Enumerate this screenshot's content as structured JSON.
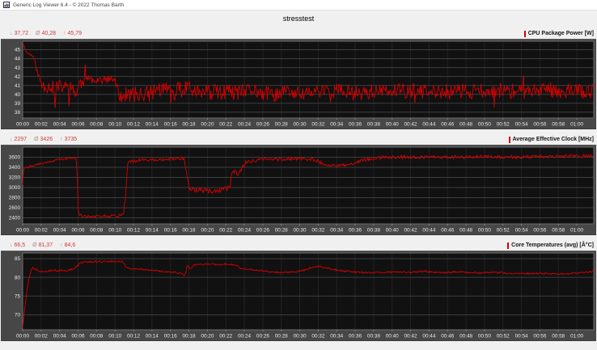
{
  "window": {
    "title": "Generic Log Viewer 6.4 - © 2022 Thomas Barth"
  },
  "page_title": "stresstest",
  "stats_symbols": {
    "min": "↓",
    "avg": "Ø",
    "max": "↑"
  },
  "colors": {
    "accent": "#d40000",
    "stat_value": "#cf3a3a",
    "stat_symbol": "#a98f8f",
    "panel_bg": "#474747",
    "plot_bg": "#111111",
    "grid_h": "#3f3f3f",
    "grid_v": "#222222",
    "frame": "#6e6e6e",
    "tick": "#8a8a8a",
    "axis_text": "#e8e8e8"
  },
  "charts": [
    {
      "min": "37,72",
      "avg": "40,28",
      "max": "45,79",
      "legend": "CPU Package Power [W]"
    },
    {
      "min": "2297",
      "avg": "3426",
      "max": "3735",
      "legend": "Average Effective Clock [MHz]"
    },
    {
      "min": "66,5",
      "avg": "81,37",
      "max": "84,6",
      "legend": "Core Temperatures (avg) [Â°C]"
    }
  ],
  "chart_data": [
    {
      "type": "line",
      "title": "CPU Package Power [W]",
      "ylabel": "W",
      "stats": {
        "min": 37.72,
        "avg": 40.28,
        "max": 45.79
      },
      "ylim": [
        37.35,
        45.95
      ],
      "xlim": [
        0,
        3710
      ],
      "grid": true,
      "legend_position": "top-right",
      "y_ticks": [
        38,
        39,
        40,
        41,
        42,
        43,
        44,
        45
      ],
      "x_tick_t": [
        0,
        120,
        240,
        360,
        480,
        600,
        720,
        840,
        960,
        1080,
        1200,
        1320,
        1440,
        1560,
        1680,
        1800,
        1920,
        2040,
        2160,
        2280,
        2400,
        2520,
        2640,
        2760,
        2880,
        3000,
        3120,
        3240,
        3360,
        3480,
        3600
      ],
      "x_tick_labels": [
        "00:00",
        "00:02",
        "00:04",
        "00:06",
        "00:08",
        "00:10",
        "00:12",
        "00:14",
        "00:16",
        "00:18",
        "00:20",
        "00:22",
        "00:24",
        "00:26",
        "00:28",
        "00:30",
        "00:32",
        "00:34",
        "00:36",
        "00:38",
        "00:40",
        "00:42",
        "00:44",
        "00:46",
        "00:48",
        "00:50",
        "00:52",
        "00:54",
        "00:56",
        "00:58",
        "01:00"
      ],
      "series_color": "#d40000",
      "seed": 11,
      "samples": 740,
      "spike_p": 0.012,
      "spike_mult": 2.2,
      "clamp": [
        37.72,
        45.79
      ],
      "keyframes": [
        [
          0,
          45.8
        ],
        [
          25,
          44.7
        ],
        [
          55,
          44.4
        ],
        [
          70,
          44.2
        ],
        [
          85,
          43.3
        ],
        [
          100,
          42.2
        ],
        [
          115,
          41.5
        ],
        [
          130,
          41.0
        ],
        [
          200,
          40.8
        ],
        [
          210,
          38.6
        ],
        [
          220,
          40.9
        ],
        [
          330,
          40.7
        ],
        [
          350,
          39.9
        ],
        [
          365,
          41.1
        ],
        [
          395,
          41.5
        ],
        [
          405,
          43.0
        ],
        [
          415,
          41.6
        ],
        [
          430,
          41.7
        ],
        [
          600,
          41.6
        ],
        [
          620,
          40.2
        ],
        [
          640,
          39.9
        ],
        [
          840,
          40.1
        ],
        [
          860,
          40.6
        ],
        [
          980,
          40.4
        ],
        [
          990,
          38.8
        ],
        [
          1000,
          40.5
        ],
        [
          1060,
          40.6
        ],
        [
          1080,
          41.8
        ],
        [
          1095,
          40.9
        ],
        [
          1110,
          40.3
        ],
        [
          1300,
          40.2
        ],
        [
          1440,
          40.2
        ],
        [
          1500,
          40.5
        ],
        [
          1620,
          39.9
        ],
        [
          1740,
          40.4
        ],
        [
          1800,
          40.0
        ],
        [
          1920,
          40.3
        ],
        [
          2040,
          40.4
        ],
        [
          2160,
          40.2
        ],
        [
          2280,
          40.3
        ],
        [
          2400,
          40.3
        ],
        [
          2520,
          40.4
        ],
        [
          2640,
          40.2
        ],
        [
          2760,
          40.3
        ],
        [
          2880,
          40.4
        ],
        [
          3000,
          40.3
        ],
        [
          3120,
          40.5
        ],
        [
          3240,
          40.2
        ],
        [
          3360,
          40.6
        ],
        [
          3480,
          40.4
        ],
        [
          3600,
          40.4
        ],
        [
          3710,
          40.3
        ]
      ],
      "noise": [
        [
          0,
          0.06
        ],
        [
          60,
          0.12
        ],
        [
          95,
          0.3
        ],
        [
          120,
          0.75
        ],
        [
          395,
          0.75
        ],
        [
          410,
          0.45
        ],
        [
          600,
          0.45
        ],
        [
          625,
          0.9
        ],
        [
          3710,
          0.85
        ]
      ]
    },
    {
      "type": "line",
      "title": "Average Effective Clock [MHz]",
      "ylabel": "MHz",
      "stats": {
        "min": 2297,
        "avg": 3426,
        "max": 3735
      },
      "ylim": [
        2280,
        3800
      ],
      "xlim": [
        0,
        3710
      ],
      "grid": true,
      "legend_position": "top-right",
      "y_ticks": [
        2400,
        2600,
        2800,
        3000,
        3200,
        3400,
        3600
      ],
      "x_tick_t": [
        0,
        120,
        240,
        360,
        480,
        600,
        720,
        840,
        960,
        1080,
        1200,
        1320,
        1440,
        1560,
        1680,
        1800,
        1920,
        2040,
        2160,
        2280,
        2400,
        2520,
        2640,
        2760,
        2880,
        3000,
        3120,
        3240,
        3360,
        3480,
        3600
      ],
      "x_tick_labels": [
        "00:00",
        "00:02",
        "00:04",
        "00:06",
        "00:08",
        "00:10",
        "00:12",
        "00:14",
        "00:16",
        "00:18",
        "00:20",
        "00:22",
        "00:24",
        "00:26",
        "00:28",
        "00:30",
        "00:32",
        "00:34",
        "00:36",
        "00:38",
        "00:40",
        "00:42",
        "00:44",
        "00:46",
        "00:48",
        "00:50",
        "00:52",
        "00:54",
        "00:56",
        "00:58",
        "01:00"
      ],
      "series_color": "#d40000",
      "seed": 22,
      "samples": 740,
      "spike_p": 0.01,
      "spike_mult": 2.0,
      "clamp": [
        2297,
        3735
      ],
      "keyframes": [
        [
          0,
          3060
        ],
        [
          6,
          3380
        ],
        [
          60,
          3430
        ],
        [
          120,
          3470
        ],
        [
          180,
          3520
        ],
        [
          240,
          3555
        ],
        [
          300,
          3580
        ],
        [
          348,
          3590
        ],
        [
          356,
          3100
        ],
        [
          362,
          2470
        ],
        [
          380,
          2440
        ],
        [
          520,
          2430
        ],
        [
          640,
          2445
        ],
        [
          655,
          2470
        ],
        [
          662,
          2700
        ],
        [
          668,
          2760
        ],
        [
          674,
          3100
        ],
        [
          682,
          3470
        ],
        [
          700,
          3510
        ],
        [
          760,
          3545
        ],
        [
          900,
          3560
        ],
        [
          1020,
          3575
        ],
        [
          1050,
          3560
        ],
        [
          1064,
          3300
        ],
        [
          1080,
          3000
        ],
        [
          1094,
          2940
        ],
        [
          1150,
          2950
        ],
        [
          1220,
          2930
        ],
        [
          1300,
          2960
        ],
        [
          1345,
          2980
        ],
        [
          1360,
          3280
        ],
        [
          1380,
          3310
        ],
        [
          1395,
          3260
        ],
        [
          1410,
          3310
        ],
        [
          1430,
          3420
        ],
        [
          1450,
          3500
        ],
        [
          1500,
          3530
        ],
        [
          1560,
          3550
        ],
        [
          1680,
          3560
        ],
        [
          1800,
          3570
        ],
        [
          1880,
          3560
        ],
        [
          1920,
          3520
        ],
        [
          1950,
          3470
        ],
        [
          1980,
          3450
        ],
        [
          2060,
          3440
        ],
        [
          2120,
          3460
        ],
        [
          2160,
          3480
        ],
        [
          2200,
          3540
        ],
        [
          2260,
          3570
        ],
        [
          2320,
          3590
        ],
        [
          2400,
          3600
        ],
        [
          2600,
          3605
        ],
        [
          2800,
          3600
        ],
        [
          3000,
          3610
        ],
        [
          3200,
          3605
        ],
        [
          3400,
          3615
        ],
        [
          3600,
          3620
        ],
        [
          3710,
          3630
        ]
      ],
      "noise": [
        [
          0,
          8
        ],
        [
          20,
          22
        ],
        [
          340,
          22
        ],
        [
          365,
          28
        ],
        [
          650,
          28
        ],
        [
          690,
          25
        ],
        [
          710,
          32
        ],
        [
          1050,
          32
        ],
        [
          1085,
          55
        ],
        [
          1340,
          55
        ],
        [
          1375,
          38
        ],
        [
          1460,
          33
        ],
        [
          3710,
          32
        ]
      ]
    },
    {
      "type": "line",
      "title": "Core Temperatures (avg) [Â°C]",
      "ylabel": "°C",
      "stats": {
        "min": 66.5,
        "avg": 81.37,
        "max": 84.6
      },
      "ylim": [
        66.0,
        86.5
      ],
      "xlim": [
        0,
        3710
      ],
      "grid": true,
      "legend_position": "top-right",
      "y_ticks": [
        70,
        75,
        80,
        85
      ],
      "x_tick_t": [
        0,
        120,
        240,
        360,
        480,
        600,
        720,
        840,
        960,
        1080,
        1200,
        1320,
        1440,
        1560,
        1680,
        1800,
        1920,
        2040,
        2160,
        2280,
        2400,
        2520,
        2640,
        2760,
        2880,
        3000,
        3120,
        3240,
        3360,
        3480,
        3600
      ],
      "x_tick_labels": [
        "00:00",
        "00:02",
        "00:04",
        "00:06",
        "00:08",
        "00:10",
        "00:12",
        "00:14",
        "00:16",
        "00:18",
        "00:20",
        "00:22",
        "00:24",
        "00:26",
        "00:28",
        "00:30",
        "00:32",
        "00:34",
        "00:36",
        "00:38",
        "00:40",
        "00:42",
        "00:44",
        "00:46",
        "00:48",
        "00:50",
        "00:52",
        "00:54",
        "00:56",
        "00:58",
        "01:00"
      ],
      "series_color": "#d40000",
      "seed": 33,
      "samples": 740,
      "spike_p": 0.008,
      "spike_mult": 1.8,
      "clamp": [
        66.5,
        84.6
      ],
      "keyframes": [
        [
          0,
          66.5
        ],
        [
          10,
          70.5
        ],
        [
          25,
          75.5
        ],
        [
          40,
          79.5
        ],
        [
          55,
          81.8
        ],
        [
          65,
          82.6
        ],
        [
          80,
          82.2
        ],
        [
          100,
          81.8
        ],
        [
          130,
          81.6
        ],
        [
          170,
          81.7
        ],
        [
          200,
          82.0
        ],
        [
          230,
          81.7
        ],
        [
          260,
          81.9
        ],
        [
          290,
          81.6
        ],
        [
          320,
          82.2
        ],
        [
          340,
          82.6
        ],
        [
          355,
          83.0
        ],
        [
          375,
          83.8
        ],
        [
          400,
          84.1
        ],
        [
          500,
          84.2
        ],
        [
          600,
          84.3
        ],
        [
          650,
          84.3
        ],
        [
          665,
          83.2
        ],
        [
          680,
          82.6
        ],
        [
          700,
          82.4
        ],
        [
          760,
          82.2
        ],
        [
          820,
          81.9
        ],
        [
          880,
          81.7
        ],
        [
          940,
          81.4
        ],
        [
          1000,
          81.3
        ],
        [
          1030,
          81.0
        ],
        [
          1048,
          80.6
        ],
        [
          1060,
          81.0
        ],
        [
          1068,
          83.0
        ],
        [
          1080,
          82.8
        ],
        [
          1090,
          82.2
        ],
        [
          1100,
          82.4
        ],
        [
          1112,
          83.2
        ],
        [
          1130,
          83.4
        ],
        [
          1180,
          83.5
        ],
        [
          1240,
          83.4
        ],
        [
          1300,
          83.5
        ],
        [
          1360,
          83.4
        ],
        [
          1390,
          83.3
        ],
        [
          1410,
          82.6
        ],
        [
          1440,
          82.2
        ],
        [
          1500,
          82.0
        ],
        [
          1540,
          81.8
        ],
        [
          1600,
          81.5
        ],
        [
          1660,
          81.3
        ],
        [
          1720,
          81.3
        ],
        [
          1780,
          81.5
        ],
        [
          1840,
          82.0
        ],
        [
          1870,
          82.6
        ],
        [
          1900,
          82.8
        ],
        [
          1930,
          82.9
        ],
        [
          1960,
          82.6
        ],
        [
          2000,
          82.3
        ],
        [
          2050,
          81.9
        ],
        [
          2100,
          81.6
        ],
        [
          2160,
          81.4
        ],
        [
          2220,
          81.3
        ],
        [
          2300,
          81.3
        ],
        [
          2400,
          81.4
        ],
        [
          2500,
          81.3
        ],
        [
          2560,
          81.5
        ],
        [
          2620,
          81.6
        ],
        [
          2680,
          81.4
        ],
        [
          2760,
          81.3
        ],
        [
          2820,
          81.5
        ],
        [
          2880,
          81.3
        ],
        [
          2960,
          81.2
        ],
        [
          3040,
          81.3
        ],
        [
          3120,
          81.2
        ],
        [
          3200,
          81.1
        ],
        [
          3300,
          81.0
        ],
        [
          3400,
          81.0
        ],
        [
          3500,
          80.9
        ],
        [
          3560,
          81.0
        ],
        [
          3650,
          81.3
        ],
        [
          3710,
          81.6
        ]
      ],
      "noise": [
        [
          0,
          0.04
        ],
        [
          50,
          0.1
        ],
        [
          80,
          0.24
        ],
        [
          3710,
          0.22
        ]
      ]
    }
  ]
}
